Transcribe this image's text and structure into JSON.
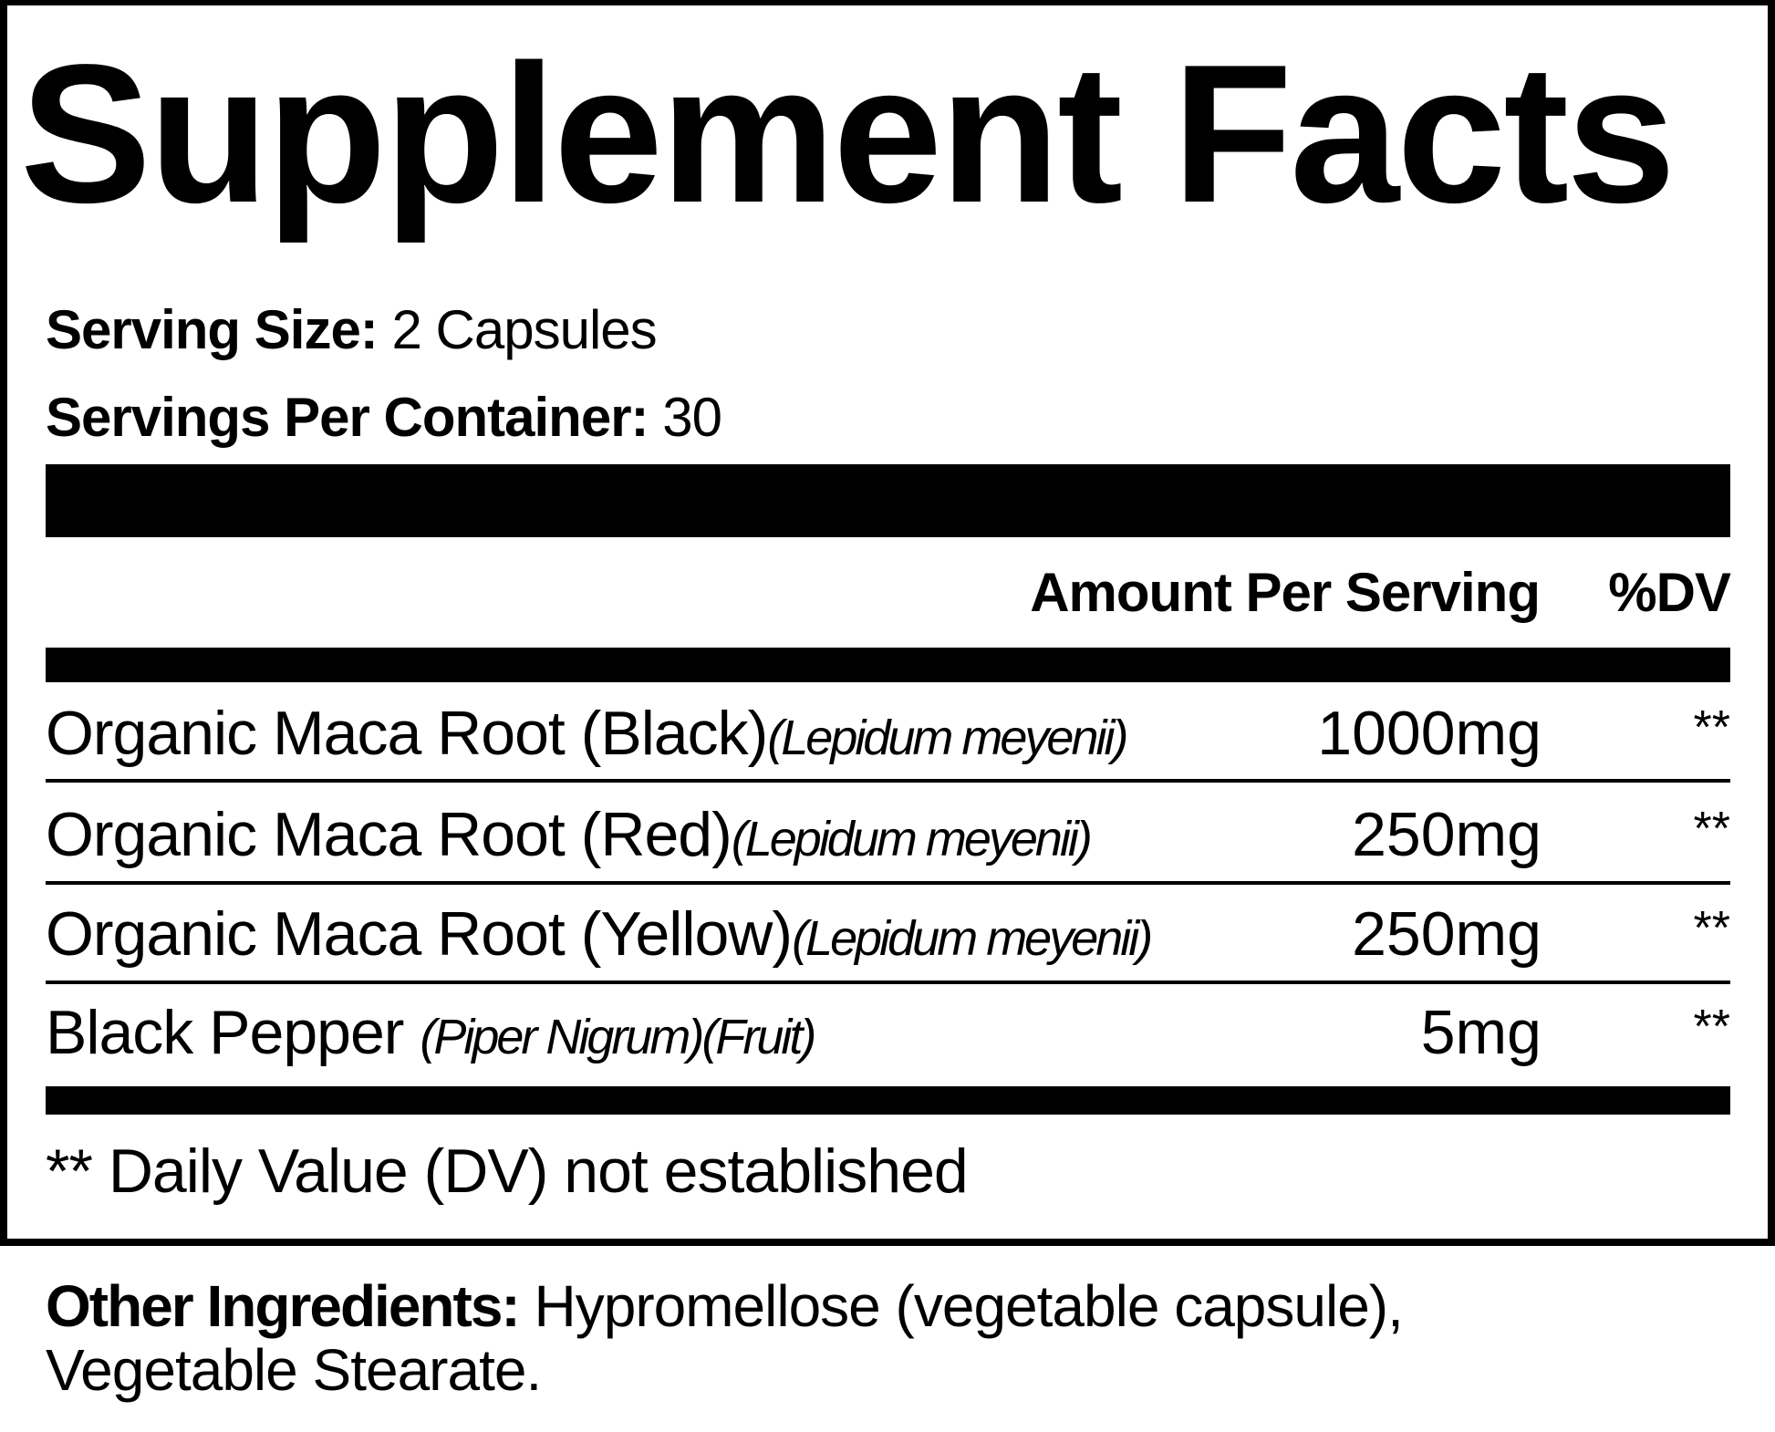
{
  "title": "Supplement Facts",
  "serving": {
    "size_label": "Serving Size:",
    "size_value": "2 Capsules",
    "per_container_label": "Servings Per Container:",
    "per_container_value": "30"
  },
  "header": {
    "amount": "Amount Per Serving",
    "dv": "%DV"
  },
  "ingredients": [
    {
      "name": "Organic Maca Root (Black)",
      "latin": "(Lepidum meyenii)",
      "amount": "1000mg",
      "dv": "**"
    },
    {
      "name": "Organic Maca Root (Red)",
      "latin": "(Lepidum meyenii)",
      "amount": "250mg",
      "dv": "**"
    },
    {
      "name": "Organic Maca Root (Yellow)",
      "latin": "(Lepidum meyenii)",
      "amount": "250mg",
      "dv": "**"
    },
    {
      "name": "Black Pepper ",
      "latin": "(Piper Nigrum)(Fruit)",
      "amount": "5mg",
      "dv": "**"
    }
  ],
  "footnote": "** Daily Value (DV) not established",
  "other": {
    "label": "Other Ingredients:",
    "line1": " Hypromellose (vegetable capsule),",
    "line2": "Vegetable Stearate."
  }
}
